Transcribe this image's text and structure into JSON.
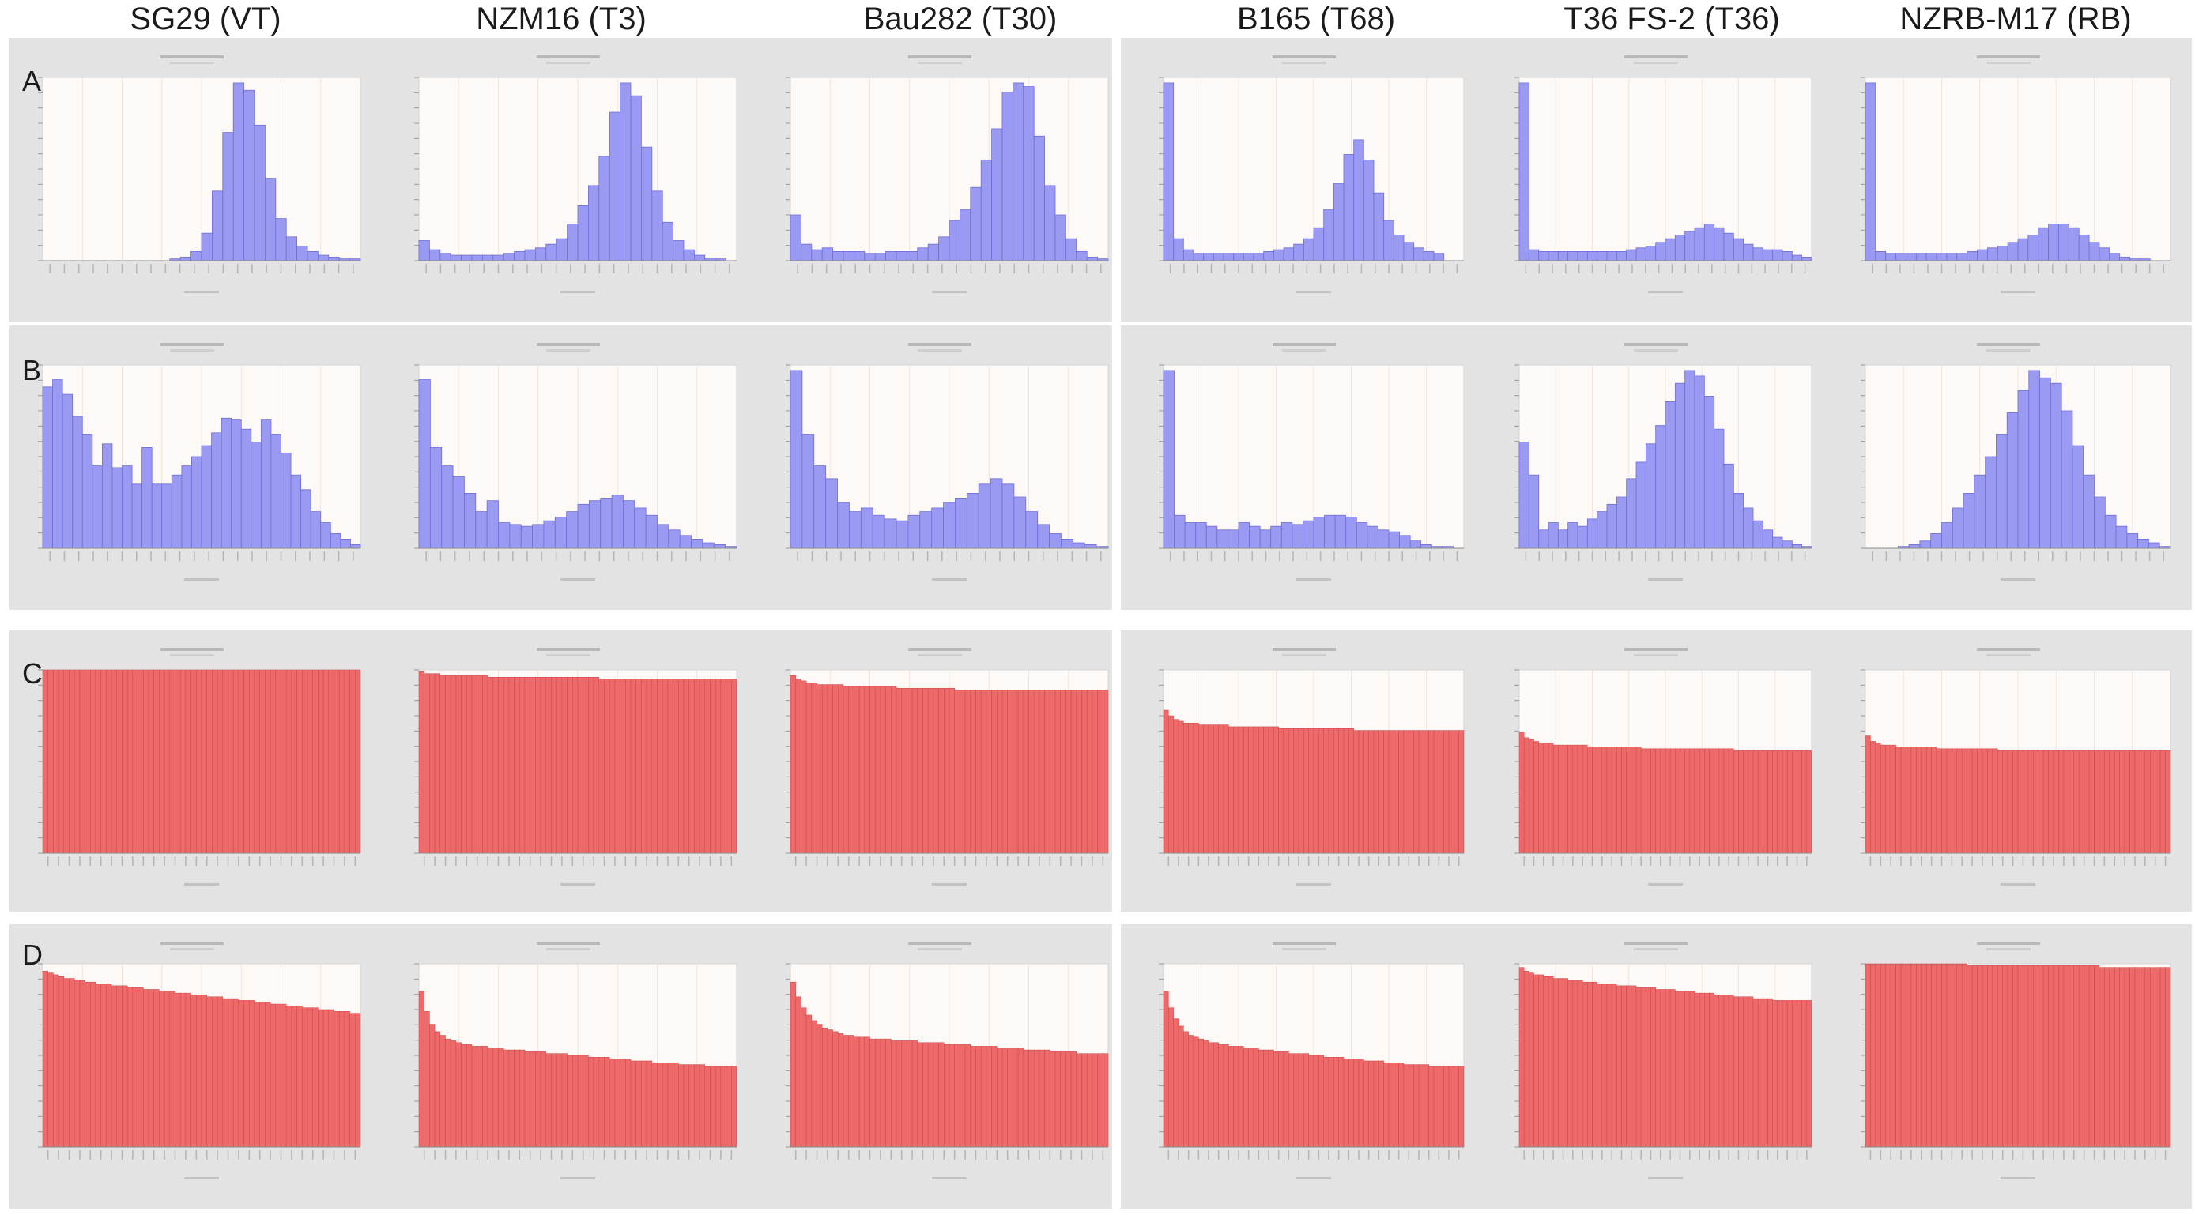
{
  "column_headers": [
    "SG29 (VT)",
    "NZM16 (T3)",
    "Bau282 (T30)",
    "B165 (T68)",
    "T36 FS-2 (T36)",
    "NZRB-M17 (RB)"
  ],
  "row_letters": [
    "A",
    "B",
    "C",
    "D"
  ],
  "colors": {
    "histogram_bar": "#9a9af2",
    "histogram_stroke": "#6e6ed6",
    "cumulative_bar": "#ee6a6a",
    "cumulative_stroke": "#c84848",
    "plot_background": "#fdf9f6",
    "panel_background": "#e3e3e3"
  },
  "chart_data": [
    {
      "row": "A",
      "column": "SG29 (VT)",
      "type": "bar",
      "y_norm": [
        0,
        0,
        0,
        0,
        0,
        0,
        0,
        0,
        0,
        0,
        0,
        0,
        0.01,
        0.02,
        0.05,
        0.15,
        0.38,
        0.7,
        0.97,
        0.93,
        0.74,
        0.45,
        0.23,
        0.13,
        0.08,
        0.05,
        0.03,
        0.02,
        0.01,
        0.01
      ]
    },
    {
      "row": "A",
      "column": "NZM16 (T3)",
      "type": "bar",
      "y_norm": [
        0.11,
        0.06,
        0.04,
        0.03,
        0.03,
        0.03,
        0.03,
        0.03,
        0.04,
        0.05,
        0.06,
        0.07,
        0.09,
        0.12,
        0.2,
        0.3,
        0.41,
        0.57,
        0.81,
        0.97,
        0.9,
        0.62,
        0.38,
        0.21,
        0.11,
        0.06,
        0.03,
        0.01,
        0.01,
        0
      ]
    },
    {
      "row": "A",
      "column": "Bau282 (T30)",
      "type": "bar",
      "y_norm": [
        0.25,
        0.09,
        0.06,
        0.07,
        0.05,
        0.05,
        0.05,
        0.04,
        0.04,
        0.05,
        0.05,
        0.05,
        0.07,
        0.09,
        0.13,
        0.22,
        0.28,
        0.4,
        0.55,
        0.72,
        0.92,
        0.97,
        0.95,
        0.68,
        0.41,
        0.25,
        0.12,
        0.05,
        0.02,
        0.01
      ]
    },
    {
      "row": "A",
      "column": "B165 (T68)",
      "type": "bar",
      "y_norm": [
        0.97,
        0.12,
        0.06,
        0.04,
        0.04,
        0.04,
        0.04,
        0.04,
        0.04,
        0.04,
        0.05,
        0.06,
        0.07,
        0.09,
        0.12,
        0.18,
        0.28,
        0.42,
        0.58,
        0.66,
        0.55,
        0.37,
        0.22,
        0.14,
        0.1,
        0.07,
        0.05,
        0.04,
        0,
        0
      ]
    },
    {
      "row": "A",
      "column": "T36 FS-2 (T36)",
      "type": "bar",
      "y_norm": [
        0.97,
        0.06,
        0.05,
        0.05,
        0.05,
        0.05,
        0.05,
        0.05,
        0.05,
        0.05,
        0.05,
        0.06,
        0.07,
        0.08,
        0.1,
        0.12,
        0.14,
        0.16,
        0.18,
        0.2,
        0.18,
        0.15,
        0.12,
        0.09,
        0.07,
        0.06,
        0.06,
        0.05,
        0.03,
        0.02
      ]
    },
    {
      "row": "A",
      "column": "NZRB-M17 (RB)",
      "type": "bar",
      "y_norm": [
        0.97,
        0.05,
        0.04,
        0.04,
        0.04,
        0.04,
        0.04,
        0.04,
        0.04,
        0.04,
        0.05,
        0.06,
        0.07,
        0.08,
        0.1,
        0.12,
        0.14,
        0.18,
        0.2,
        0.2,
        0.18,
        0.14,
        0.1,
        0.07,
        0.04,
        0.02,
        0.01,
        0.01,
        0,
        0
      ]
    },
    {
      "row": "B",
      "column": "SG29 (VT)",
      "type": "bar",
      "y_norm": [
        0.88,
        0.92,
        0.84,
        0.72,
        0.62,
        0.45,
        0.57,
        0.44,
        0.45,
        0.35,
        0.55,
        0.35,
        0.35,
        0.4,
        0.45,
        0.5,
        0.56,
        0.63,
        0.71,
        0.7,
        0.65,
        0.58,
        0.7,
        0.62,
        0.52,
        0.4,
        0.32,
        0.2,
        0.14,
        0.08,
        0.05,
        0.02
      ]
    },
    {
      "row": "B",
      "column": "NZM16 (T3)",
      "type": "bar",
      "y_norm": [
        0.92,
        0.55,
        0.45,
        0.39,
        0.3,
        0.2,
        0.26,
        0.14,
        0.13,
        0.12,
        0.13,
        0.15,
        0.17,
        0.2,
        0.24,
        0.26,
        0.27,
        0.29,
        0.26,
        0.22,
        0.18,
        0.13,
        0.1,
        0.07,
        0.05,
        0.03,
        0.02,
        0.01
      ]
    },
    {
      "row": "B",
      "column": "Bau282 (T30)",
      "type": "bar",
      "y_norm": [
        0.97,
        0.62,
        0.45,
        0.38,
        0.25,
        0.2,
        0.22,
        0.18,
        0.16,
        0.15,
        0.18,
        0.2,
        0.22,
        0.25,
        0.27,
        0.3,
        0.35,
        0.38,
        0.35,
        0.28,
        0.2,
        0.13,
        0.08,
        0.05,
        0.03,
        0.02,
        0.01
      ]
    },
    {
      "row": "B",
      "column": "B165 (T68)",
      "type": "bar",
      "y_norm": [
        0.97,
        0.18,
        0.14,
        0.14,
        0.12,
        0.1,
        0.1,
        0.14,
        0.12,
        0.1,
        0.12,
        0.14,
        0.13,
        0.15,
        0.17,
        0.18,
        0.18,
        0.17,
        0.14,
        0.12,
        0.1,
        0.09,
        0.07,
        0.04,
        0.02,
        0.01,
        0.01,
        0
      ]
    },
    {
      "row": "B",
      "column": "T36 FS-2 (T36)",
      "type": "bar",
      "y_norm": [
        0.58,
        0.4,
        0.1,
        0.14,
        0.1,
        0.14,
        0.12,
        0.16,
        0.2,
        0.24,
        0.28,
        0.38,
        0.47,
        0.57,
        0.67,
        0.8,
        0.9,
        0.97,
        0.94,
        0.83,
        0.65,
        0.46,
        0.3,
        0.22,
        0.15,
        0.1,
        0.06,
        0.04,
        0.02,
        0.01
      ]
    },
    {
      "row": "B",
      "column": "NZRB-M17 (RB)",
      "type": "bar",
      "y_norm": [
        0,
        0,
        0,
        0.01,
        0.02,
        0.04,
        0.08,
        0.14,
        0.22,
        0.3,
        0.4,
        0.5,
        0.62,
        0.74,
        0.86,
        0.97,
        0.93,
        0.9,
        0.75,
        0.56,
        0.4,
        0.28,
        0.18,
        0.12,
        0.08,
        0.05,
        0.03,
        0.01
      ]
    },
    {
      "row": "C",
      "column": "SG29 (VT)",
      "type": "bar",
      "y_norm": [
        1.0,
        1.0,
        1.0,
        1.0,
        1.0,
        1.0,
        1.0,
        1.0,
        1.0,
        1.0,
        1.0,
        1.0,
        1.0,
        1.0,
        1.0,
        1.0,
        1.0,
        1.0,
        1.0,
        1.0,
        1.0,
        1.0,
        1.0,
        1.0,
        1.0,
        1.0,
        1.0,
        1.0,
        1.0,
        1.0,
        1.0,
        1.0,
        1.0,
        1.0,
        1.0,
        1.0,
        1.0,
        1.0,
        1.0,
        1.0,
        1.0,
        1.0,
        1.0,
        1.0,
        1.0,
        1.0,
        1.0,
        1.0,
        1.0,
        1.0,
        1.0,
        1.0,
        1.0,
        1.0,
        1.0,
        1.0,
        1.0,
        1.0,
        1.0,
        1.0
      ]
    },
    {
      "row": "C",
      "column": "NZM16 (T3)",
      "type": "bar",
      "y_norm": [
        0.99,
        0.98,
        0.98,
        0.98,
        0.97,
        0.97,
        0.97,
        0.97,
        0.97,
        0.97,
        0.97,
        0.97,
        0.97,
        0.96,
        0.96,
        0.96,
        0.96,
        0.96,
        0.96,
        0.96,
        0.96,
        0.96,
        0.96,
        0.96,
        0.96,
        0.96,
        0.96,
        0.96,
        0.96,
        0.96,
        0.96,
        0.96,
        0.96,
        0.96,
        0.95,
        0.95,
        0.95,
        0.95,
        0.95,
        0.95,
        0.95,
        0.95,
        0.95,
        0.95,
        0.95,
        0.95,
        0.95,
        0.95,
        0.95,
        0.95,
        0.95,
        0.95,
        0.95,
        0.95,
        0.95,
        0.95,
        0.95,
        0.95,
        0.95,
        0.95
      ]
    },
    {
      "row": "C",
      "column": "Bau282 (T30)",
      "type": "bar",
      "y_norm": [
        0.97,
        0.95,
        0.94,
        0.93,
        0.93,
        0.92,
        0.92,
        0.92,
        0.92,
        0.92,
        0.91,
        0.91,
        0.91,
        0.91,
        0.91,
        0.91,
        0.91,
        0.91,
        0.91,
        0.91,
        0.9,
        0.9,
        0.9,
        0.9,
        0.9,
        0.9,
        0.9,
        0.9,
        0.9,
        0.9,
        0.9,
        0.89,
        0.89,
        0.89,
        0.89,
        0.89,
        0.89,
        0.89,
        0.89,
        0.89,
        0.89,
        0.89,
        0.89,
        0.89,
        0.89,
        0.89,
        0.89,
        0.89,
        0.89,
        0.89,
        0.89,
        0.89,
        0.89,
        0.89,
        0.89,
        0.89,
        0.89,
        0.89,
        0.89,
        0.89
      ]
    },
    {
      "row": "C",
      "column": "B165 (T68)",
      "type": "bar",
      "y_norm": [
        0.78,
        0.75,
        0.73,
        0.72,
        0.71,
        0.71,
        0.71,
        0.7,
        0.7,
        0.7,
        0.7,
        0.7,
        0.7,
        0.69,
        0.69,
        0.69,
        0.69,
        0.69,
        0.69,
        0.69,
        0.69,
        0.69,
        0.69,
        0.68,
        0.68,
        0.68,
        0.68,
        0.68,
        0.68,
        0.68,
        0.68,
        0.68,
        0.68,
        0.68,
        0.68,
        0.68,
        0.68,
        0.68,
        0.67,
        0.67,
        0.67,
        0.67,
        0.67,
        0.67,
        0.67,
        0.67,
        0.67,
        0.67,
        0.67,
        0.67,
        0.67,
        0.67,
        0.67,
        0.67,
        0.67,
        0.67,
        0.67,
        0.67,
        0.67,
        0.67
      ]
    },
    {
      "row": "C",
      "column": "T36 FS-2 (T36)",
      "type": "bar",
      "y_norm": [
        0.66,
        0.63,
        0.62,
        0.61,
        0.6,
        0.6,
        0.6,
        0.59,
        0.59,
        0.59,
        0.59,
        0.59,
        0.59,
        0.59,
        0.58,
        0.58,
        0.58,
        0.58,
        0.58,
        0.58,
        0.58,
        0.58,
        0.58,
        0.58,
        0.58,
        0.57,
        0.57,
        0.57,
        0.57,
        0.57,
        0.57,
        0.57,
        0.57,
        0.57,
        0.57,
        0.57,
        0.57,
        0.57,
        0.57,
        0.57,
        0.57,
        0.57,
        0.57,
        0.57,
        0.56,
        0.56,
        0.56,
        0.56,
        0.56,
        0.56,
        0.56,
        0.56,
        0.56,
        0.56,
        0.56,
        0.56,
        0.56,
        0.56,
        0.56,
        0.56
      ]
    },
    {
      "row": "C",
      "column": "NZRB-M17 (RB)",
      "type": "bar",
      "y_norm": [
        0.64,
        0.61,
        0.6,
        0.59,
        0.59,
        0.59,
        0.58,
        0.58,
        0.58,
        0.58,
        0.58,
        0.58,
        0.58,
        0.58,
        0.57,
        0.57,
        0.57,
        0.57,
        0.57,
        0.57,
        0.57,
        0.57,
        0.57,
        0.57,
        0.57,
        0.57,
        0.56,
        0.56,
        0.56,
        0.56,
        0.56,
        0.56,
        0.56,
        0.56,
        0.56,
        0.56,
        0.56,
        0.56,
        0.56,
        0.56,
        0.56,
        0.56,
        0.56,
        0.56,
        0.56,
        0.56,
        0.56,
        0.56,
        0.56,
        0.56,
        0.56,
        0.56,
        0.56,
        0.56,
        0.56,
        0.56,
        0.56,
        0.56,
        0.56,
        0.56
      ]
    },
    {
      "row": "D",
      "column": "SG29 (VT)",
      "type": "bar",
      "y_norm": [
        0.96,
        0.95,
        0.94,
        0.93,
        0.92,
        0.92,
        0.91,
        0.91,
        0.9,
        0.9,
        0.89,
        0.89,
        0.89,
        0.88,
        0.88,
        0.88,
        0.87,
        0.87,
        0.87,
        0.86,
        0.86,
        0.86,
        0.85,
        0.85,
        0.85,
        0.84,
        0.84,
        0.84,
        0.83,
        0.83,
        0.83,
        0.82,
        0.82,
        0.82,
        0.81,
        0.81,
        0.81,
        0.8,
        0.8,
        0.8,
        0.79,
        0.79,
        0.79,
        0.78,
        0.78,
        0.78,
        0.77,
        0.77,
        0.77,
        0.76,
        0.76,
        0.76,
        0.75,
        0.75,
        0.75,
        0.74,
        0.74,
        0.74,
        0.73,
        0.73
      ]
    },
    {
      "row": "D",
      "column": "NZM16 (T3)",
      "type": "bar",
      "y_norm": [
        0.85,
        0.74,
        0.67,
        0.63,
        0.61,
        0.59,
        0.58,
        0.57,
        0.56,
        0.56,
        0.55,
        0.55,
        0.55,
        0.54,
        0.54,
        0.54,
        0.53,
        0.53,
        0.53,
        0.53,
        0.52,
        0.52,
        0.52,
        0.52,
        0.51,
        0.51,
        0.51,
        0.51,
        0.5,
        0.5,
        0.5,
        0.5,
        0.49,
        0.49,
        0.49,
        0.49,
        0.48,
        0.48,
        0.48,
        0.48,
        0.47,
        0.47,
        0.47,
        0.47,
        0.46,
        0.46,
        0.46,
        0.46,
        0.46,
        0.45,
        0.45,
        0.45,
        0.45,
        0.45,
        0.44,
        0.44,
        0.44,
        0.44,
        0.44,
        0.44
      ]
    },
    {
      "row": "D",
      "column": "Bau282 (T30)",
      "type": "bar",
      "y_norm": [
        0.9,
        0.82,
        0.76,
        0.72,
        0.69,
        0.67,
        0.65,
        0.64,
        0.63,
        0.62,
        0.61,
        0.61,
        0.6,
        0.6,
        0.6,
        0.59,
        0.59,
        0.59,
        0.59,
        0.58,
        0.58,
        0.58,
        0.58,
        0.58,
        0.57,
        0.57,
        0.57,
        0.57,
        0.57,
        0.56,
        0.56,
        0.56,
        0.56,
        0.56,
        0.55,
        0.55,
        0.55,
        0.55,
        0.55,
        0.54,
        0.54,
        0.54,
        0.54,
        0.54,
        0.53,
        0.53,
        0.53,
        0.53,
        0.53,
        0.52,
        0.52,
        0.52,
        0.52,
        0.52,
        0.51,
        0.51,
        0.51,
        0.51,
        0.51,
        0.51
      ]
    },
    {
      "row": "D",
      "column": "B165 (T68)",
      "type": "bar",
      "y_norm": [
        0.85,
        0.76,
        0.7,
        0.66,
        0.63,
        0.61,
        0.6,
        0.59,
        0.58,
        0.57,
        0.57,
        0.56,
        0.56,
        0.55,
        0.55,
        0.55,
        0.54,
        0.54,
        0.54,
        0.53,
        0.53,
        0.53,
        0.52,
        0.52,
        0.52,
        0.51,
        0.51,
        0.51,
        0.51,
        0.5,
        0.5,
        0.5,
        0.49,
        0.49,
        0.49,
        0.49,
        0.48,
        0.48,
        0.48,
        0.48,
        0.47,
        0.47,
        0.47,
        0.47,
        0.46,
        0.46,
        0.46,
        0.46,
        0.45,
        0.45,
        0.45,
        0.45,
        0.45,
        0.44,
        0.44,
        0.44,
        0.44,
        0.44,
        0.44,
        0.44
      ]
    },
    {
      "row": "D",
      "column": "T36 FS-2 (T36)",
      "type": "bar",
      "y_norm": [
        0.98,
        0.96,
        0.95,
        0.94,
        0.94,
        0.93,
        0.93,
        0.92,
        0.92,
        0.92,
        0.91,
        0.91,
        0.91,
        0.9,
        0.9,
        0.9,
        0.89,
        0.89,
        0.89,
        0.89,
        0.88,
        0.88,
        0.88,
        0.88,
        0.87,
        0.87,
        0.87,
        0.87,
        0.86,
        0.86,
        0.86,
        0.86,
        0.85,
        0.85,
        0.85,
        0.85,
        0.84,
        0.84,
        0.84,
        0.84,
        0.83,
        0.83,
        0.83,
        0.83,
        0.82,
        0.82,
        0.82,
        0.82,
        0.81,
        0.81,
        0.81,
        0.81,
        0.8,
        0.8,
        0.8,
        0.8,
        0.8,
        0.8,
        0.8,
        0.8
      ]
    },
    {
      "row": "D",
      "column": "NZRB-M17 (RB)",
      "type": "bar",
      "y_norm": [
        1.0,
        1.0,
        1.0,
        1.0,
        1.0,
        1.0,
        1.0,
        1.0,
        1.0,
        1.0,
        1.0,
        1.0,
        1.0,
        1.0,
        1.0,
        1.0,
        1.0,
        1.0,
        1.0,
        1.0,
        0.99,
        0.99,
        0.99,
        0.99,
        0.99,
        0.99,
        0.99,
        0.99,
        0.99,
        0.99,
        0.99,
        0.99,
        0.99,
        0.99,
        0.99,
        0.99,
        0.99,
        0.99,
        0.99,
        0.99,
        0.99,
        0.99,
        0.99,
        0.99,
        0.99,
        0.99,
        0.98,
        0.98,
        0.98,
        0.98,
        0.98,
        0.98,
        0.98,
        0.98,
        0.98,
        0.98,
        0.98,
        0.98,
        0.98,
        0.98
      ]
    }
  ]
}
